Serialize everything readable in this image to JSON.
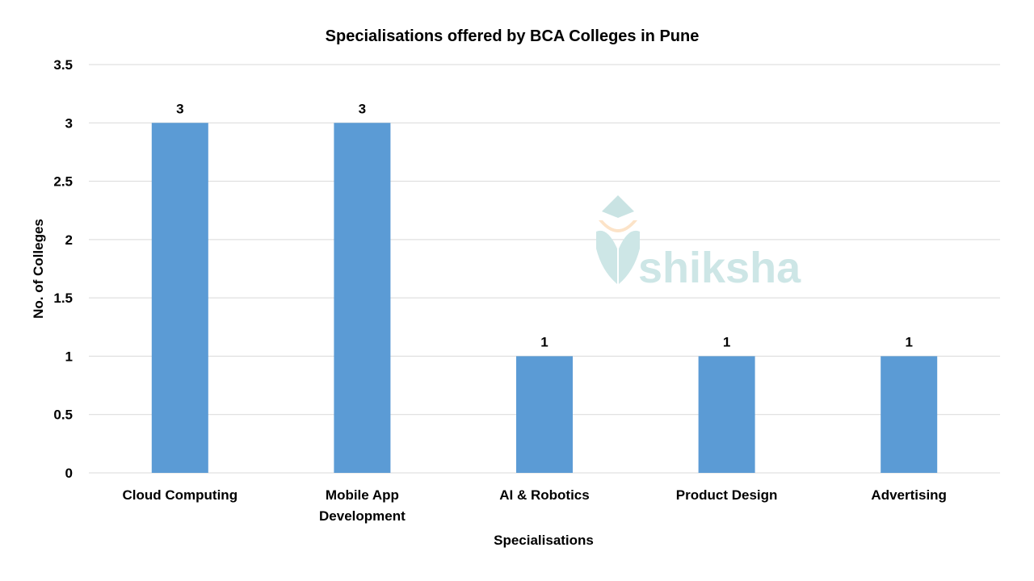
{
  "chart_data": {
    "type": "bar",
    "title": "Specialisations offered by BCA Colleges in Pune",
    "xlabel": "Specialisations",
    "ylabel": "No. of Colleges",
    "categories": [
      [
        "Cloud Computing"
      ],
      [
        "Mobile App",
        "Development"
      ],
      [
        "AI & Robotics"
      ],
      [
        "Product Design"
      ],
      [
        "Advertising"
      ]
    ],
    "values": [
      3,
      3,
      1,
      1,
      1
    ],
    "data_labels": [
      "3",
      "3",
      "1",
      "1",
      "1"
    ],
    "ylim": [
      0,
      3.5
    ],
    "yticks": [
      0,
      0.5,
      1,
      1.5,
      2,
      2.5,
      3,
      3.5
    ],
    "ytick_labels": [
      "0",
      "0.5",
      "1",
      "1.5",
      "2",
      "2.5",
      "3",
      "3.5"
    ],
    "grid": true,
    "legend": "none",
    "bar_color": "#5B9BD5",
    "grid_color": "#D9D9D9"
  },
  "watermark": {
    "text": "shiksha",
    "color": "#CDE6E6",
    "cap_color": "#C9E3E3",
    "accent_color": "#FCE3C8",
    "icon": "graduation-cap-logo-icon"
  }
}
